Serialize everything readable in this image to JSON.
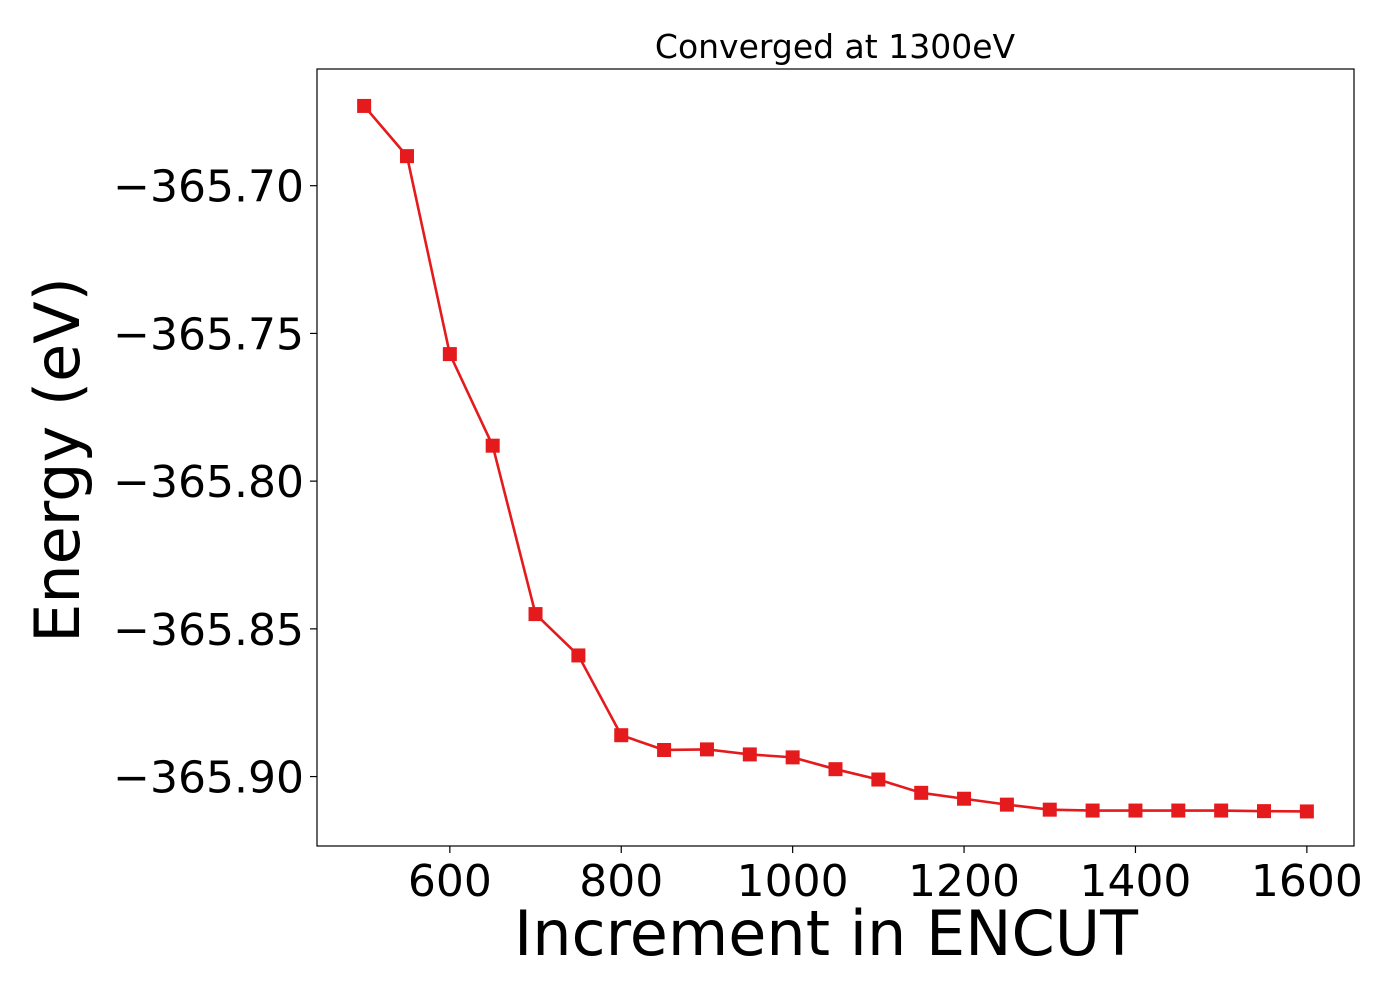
{
  "chart_data": {
    "type": "line",
    "title": "Converged at 1300eV",
    "xlabel": "Increment in ENCUT",
    "ylabel": "Energy (eV)",
    "xlim": [
      445,
      1655
    ],
    "ylim": [
      -365.9235,
      -365.6605
    ],
    "x_ticks": [
      600,
      800,
      1000,
      1200,
      1400,
      1600
    ],
    "x_tick_labels": [
      "600",
      "800",
      "1000",
      "1200",
      "1400",
      "1600"
    ],
    "y_ticks": [
      -365.7,
      -365.75,
      -365.8,
      -365.85,
      -365.9
    ],
    "y_tick_labels": [
      "−365.70",
      "−365.75",
      "−365.80",
      "−365.85",
      "−365.90"
    ],
    "grid": false,
    "legend": "none",
    "series": [
      {
        "color": "#e41a1c",
        "marker": "square",
        "x": [
          500,
          550,
          600,
          650,
          700,
          750,
          800,
          850,
          900,
          950,
          1000,
          1050,
          1100,
          1150,
          1200,
          1250,
          1300,
          1350,
          1400,
          1450,
          1500,
          1550,
          1600
        ],
        "y": [
          -365.673,
          -365.69,
          -365.757,
          -365.788,
          -365.845,
          -365.859,
          -365.886,
          -365.891,
          -365.8908,
          -365.8925,
          -365.8935,
          -365.8975,
          -365.901,
          -365.9055,
          -365.9075,
          -365.9095,
          -365.9112,
          -365.9115,
          -365.9115,
          -365.9115,
          -365.9115,
          -365.9117,
          -365.9118
        ]
      }
    ]
  }
}
